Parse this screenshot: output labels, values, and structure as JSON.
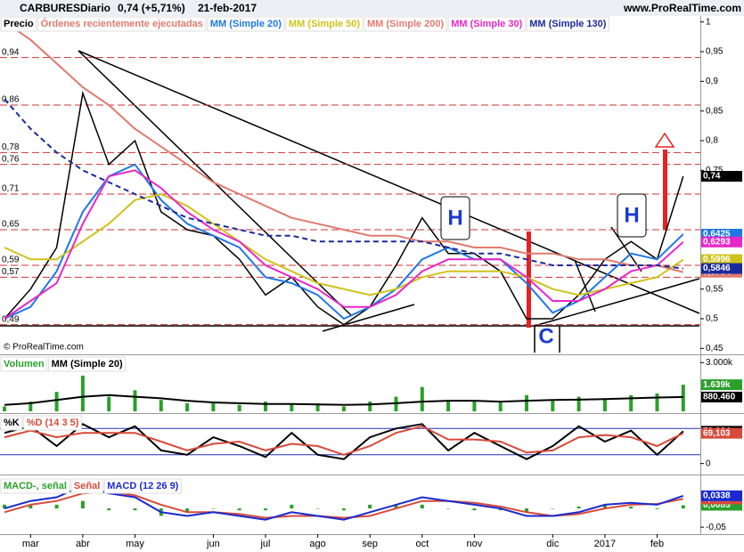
{
  "header": {
    "symbol": "CARBURES",
    "period": "Diario",
    "change": "0,74 (+5,71%)",
    "date": "21-feb-2017",
    "site": "www.ProRealTime.com"
  },
  "chart_data": [
    {
      "type": "line",
      "orders_label": "Órdenes recientemente ejecutadas",
      "source": "© ProRealTime.com",
      "annotations": [
        "H",
        "H",
        "C"
      ],
      "ylim": [
        0.44,
        1.01
      ],
      "yticks": [
        {
          "value": 0.45,
          "label": "0,45"
        },
        {
          "value": 0.5,
          "label": "0,5"
        },
        {
          "value": 0.55,
          "label": "0,55"
        },
        {
          "value": 0.75,
          "label": "0,75"
        },
        {
          "value": 0.8,
          "label": "0,8"
        },
        {
          "value": 0.85,
          "label": "0,85"
        },
        {
          "value": 0.9,
          "label": "0,9"
        },
        {
          "value": 0.95,
          "label": "0,95"
        },
        1
      ],
      "levels": [
        {
          "value": 0.94,
          "label": "0,94"
        },
        {
          "value": 0.86,
          "label": "0,86"
        },
        {
          "value": 0.78,
          "label": "0,78"
        },
        {
          "value": 0.76,
          "label": "0,76"
        },
        {
          "value": 0.71,
          "label": "0,71"
        },
        {
          "value": 0.65,
          "label": "0,65"
        },
        {
          "value": 0.59,
          "label": "0,59"
        },
        {
          "value": 0.57,
          "label": "0,57"
        },
        {
          "value": 0.49,
          "label": "0,49"
        }
      ],
      "level_color": "#d03030",
      "series": [
        {
          "name": "Precio",
          "color": "#000000",
          "values": [
            0.5,
            0.55,
            0.62,
            0.88,
            0.76,
            0.8,
            0.68,
            0.65,
            0.64,
            0.6,
            0.54,
            0.57,
            0.52,
            0.49,
            0.52,
            0.59,
            0.67,
            0.61,
            0.61,
            0.58,
            0.5,
            0.5,
            0.54,
            0.6,
            0.63,
            0.6,
            0.74
          ],
          "value_labels": [
            null,
            null,
            null,
            null,
            null,
            null,
            null,
            null,
            null,
            null,
            null,
            null,
            null,
            null,
            null,
            null,
            null,
            null,
            null,
            null,
            null,
            null,
            null,
            null,
            null,
            null,
            "0,74"
          ]
        },
        {
          "name": "MM (Simple 20)",
          "color": "#1e78e6",
          "values": [
            0.5,
            0.52,
            0.58,
            0.68,
            0.74,
            0.76,
            0.7,
            0.66,
            0.64,
            0.62,
            0.57,
            0.56,
            0.54,
            0.5,
            0.52,
            0.55,
            0.6,
            0.62,
            0.6,
            0.6,
            0.56,
            0.51,
            0.53,
            0.57,
            0.61,
            0.6,
            0.6425
          ],
          "value_labels": [
            null,
            null,
            null,
            null,
            null,
            null,
            null,
            null,
            null,
            null,
            null,
            null,
            null,
            null,
            null,
            null,
            null,
            null,
            null,
            null,
            null,
            null,
            null,
            null,
            null,
            null,
            "0,6425"
          ]
        },
        {
          "name": "MM (Simple 50)",
          "color": "#cfc21a",
          "values": [
            0.62,
            0.6,
            0.6,
            0.63,
            0.66,
            0.7,
            0.71,
            0.69,
            0.66,
            0.63,
            0.6,
            0.58,
            0.56,
            0.55,
            0.54,
            0.55,
            0.57,
            0.58,
            0.58,
            0.58,
            0.57,
            0.55,
            0.54,
            0.55,
            0.56,
            0.57,
            0.5996
          ],
          "value_labels": [
            null,
            null,
            null,
            null,
            null,
            null,
            null,
            null,
            null,
            null,
            null,
            null,
            null,
            null,
            null,
            null,
            null,
            null,
            null,
            null,
            null,
            null,
            null,
            null,
            null,
            null,
            "0,5996"
          ]
        },
        {
          "name": "MM (Simple 200)",
          "color": "#e07a6e",
          "values": [
            1.0,
            0.97,
            0.93,
            0.89,
            0.86,
            0.82,
            0.79,
            0.76,
            0.73,
            0.71,
            0.69,
            0.67,
            0.66,
            0.65,
            0.64,
            0.64,
            0.63,
            0.63,
            0.62,
            0.62,
            0.61,
            0.61,
            0.6,
            0.6,
            0.59,
            0.59,
            0.5784
          ],
          "value_labels": [
            null,
            null,
            null,
            null,
            null,
            null,
            null,
            null,
            null,
            null,
            null,
            null,
            null,
            null,
            null,
            null,
            null,
            null,
            null,
            null,
            null,
            null,
            null,
            null,
            null,
            null,
            "0,5784"
          ]
        },
        {
          "name": "MM (Simple 30)",
          "color": "#e628c8",
          "values": [
            0.5,
            0.53,
            0.56,
            0.66,
            0.74,
            0.75,
            0.72,
            0.68,
            0.65,
            0.63,
            0.59,
            0.57,
            0.55,
            0.52,
            0.52,
            0.54,
            0.58,
            0.6,
            0.6,
            0.6,
            0.57,
            0.53,
            0.53,
            0.55,
            0.58,
            0.59,
            0.6293
          ],
          "value_labels": [
            null,
            null,
            null,
            null,
            null,
            null,
            null,
            null,
            null,
            null,
            null,
            null,
            null,
            null,
            null,
            null,
            null,
            null,
            null,
            null,
            null,
            null,
            null,
            null,
            null,
            null,
            "0,6293"
          ]
        },
        {
          "name": "MM (Simple 130)",
          "color": "#1a2a9a",
          "dash": true,
          "values": [
            0.87,
            0.82,
            0.78,
            0.75,
            0.73,
            0.71,
            0.69,
            0.67,
            0.66,
            0.65,
            0.64,
            0.64,
            0.63,
            0.63,
            0.63,
            0.63,
            0.63,
            0.62,
            0.61,
            0.61,
            0.6,
            0.59,
            0.59,
            0.59,
            0.59,
            0.59,
            0.5846
          ],
          "value_labels": [
            null,
            null,
            null,
            null,
            null,
            null,
            null,
            null,
            null,
            null,
            null,
            null,
            null,
            null,
            null,
            null,
            null,
            null,
            null,
            null,
            null,
            null,
            null,
            null,
            null,
            null,
            "0,5846"
          ]
        }
      ]
    },
    {
      "type": "bar",
      "ylim": [
        0,
        3400000
      ],
      "yticks": [
        {
          "value": 3000000,
          "label": "3.000k"
        }
      ],
      "series": [
        {
          "name": "Volumen",
          "color": "#2aa02a",
          "values": [
            300000,
            600000,
            1200000,
            2200000,
            900000,
            1300000,
            700000,
            500000,
            500000,
            400000,
            600000,
            400000,
            500000,
            300000,
            600000,
            900000,
            1500000,
            700000,
            600000,
            600000,
            1000000,
            700000,
            900000,
            800000,
            1000000,
            1100000,
            1639000
          ],
          "value_labels": [
            null,
            null,
            null,
            null,
            null,
            null,
            null,
            null,
            null,
            null,
            null,
            null,
            null,
            null,
            null,
            null,
            null,
            null,
            null,
            null,
            null,
            null,
            null,
            null,
            null,
            null,
            "1.639k"
          ]
        },
        {
          "name": "MM (Simple 20)",
          "type": "line",
          "color": "#000000",
          "values": [
            400000,
            500000,
            700000,
            900000,
            1000000,
            900000,
            800000,
            650000,
            550000,
            500000,
            450000,
            450000,
            420000,
            400000,
            420000,
            500000,
            600000,
            650000,
            650000,
            600000,
            650000,
            700000,
            720000,
            750000,
            800000,
            850000,
            880460
          ],
          "value_labels": [
            null,
            null,
            null,
            null,
            null,
            null,
            null,
            null,
            null,
            null,
            null,
            null,
            null,
            null,
            null,
            null,
            null,
            null,
            null,
            null,
            null,
            null,
            null,
            null,
            null,
            null,
            "880.460"
          ]
        }
      ]
    },
    {
      "type": "line",
      "ylim": [
        -19,
        111
      ],
      "yticks": [
        0
      ],
      "levels": [
        20,
        80
      ],
      "level_color": "#2030c0",
      "series": [
        {
          "name": "%K",
          "color": "#000000",
          "values": [
            70,
            85,
            40,
            90,
            60,
            85,
            30,
            20,
            60,
            40,
            15,
            70,
            20,
            10,
            60,
            80,
            90,
            30,
            70,
            40,
            10,
            40,
            85,
            50,
            75,
            20,
            73.684
          ],
          "value_labels": [
            null,
            null,
            null,
            null,
            null,
            null,
            null,
            null,
            null,
            null,
            null,
            null,
            null,
            null,
            null,
            null,
            null,
            null,
            null,
            null,
            null,
            null,
            null,
            null,
            null,
            null,
            "73,684"
          ]
        },
        {
          "name": "%D (14 3 5)",
          "color": "#d84a3a",
          "values": [
            60,
            75,
            60,
            70,
            70,
            70,
            50,
            30,
            45,
            50,
            30,
            45,
            40,
            20,
            40,
            70,
            85,
            55,
            55,
            50,
            25,
            30,
            60,
            65,
            60,
            40,
            69.103
          ],
          "value_labels": [
            null,
            null,
            null,
            null,
            null,
            null,
            null,
            null,
            null,
            null,
            null,
            null,
            null,
            null,
            null,
            null,
            null,
            null,
            null,
            null,
            null,
            null,
            null,
            null,
            null,
            null,
            "69,103"
          ]
        }
      ]
    },
    {
      "type": "line",
      "ylim": [
        -0.064,
        0.081
      ],
      "yticks": [
        {
          "value": -0.05,
          "label": "-0,05"
        }
      ],
      "categories": [
        null,
        "mar",
        null,
        "abr",
        null,
        "may",
        null,
        null,
        "jun",
        null,
        "jul",
        null,
        "ago",
        null,
        "sep",
        null,
        "oct",
        null,
        "nov",
        null,
        null,
        "dic",
        null,
        "2017",
        null,
        "feb",
        null
      ],
      "series": [
        {
          "name": "MACD-, señal",
          "type": "bar",
          "color": "#2aa02a",
          "values": [
            0.01,
            0.01,
            0.01,
            0.02,
            -0.005,
            -0.005,
            -0.02,
            -0.01,
            0,
            -0.005,
            -0.005,
            0.01,
            0,
            -0.005,
            0.01,
            0.01,
            0.01,
            0,
            -0.005,
            -0.005,
            -0.01,
            0,
            0.005,
            0.01,
            0.005,
            -0.002,
            0.0085
          ],
          "value_labels": [
            null,
            null,
            null,
            null,
            null,
            null,
            null,
            null,
            null,
            null,
            null,
            null,
            null,
            null,
            null,
            null,
            null,
            null,
            null,
            null,
            null,
            null,
            null,
            null,
            null,
            null,
            "0,0085"
          ]
        },
        {
          "name": "Señal",
          "color": "#d84a3a",
          "values": [
            -0.01,
            0.01,
            0.02,
            0.04,
            0.045,
            0.035,
            0.01,
            -0.01,
            -0.01,
            -0.015,
            -0.025,
            -0.02,
            -0.02,
            -0.025,
            -0.02,
            0,
            0.02,
            0.02,
            0.015,
            0.005,
            -0.01,
            -0.02,
            -0.015,
            0,
            0.01,
            0.012,
            0.0253
          ],
          "value_labels": [
            null,
            null,
            null,
            null,
            null,
            null,
            null,
            null,
            null,
            null,
            null,
            null,
            null,
            null,
            null,
            null,
            null,
            null,
            null,
            null,
            null,
            null,
            null,
            null,
            null,
            null,
            "0,0253"
          ]
        },
        {
          "name": "MACD (12 26 9)",
          "color": "#1a2ad0",
          "values": [
            0,
            0.02,
            0.03,
            0.06,
            0.04,
            0.03,
            -0.01,
            -0.02,
            -0.01,
            -0.02,
            -0.03,
            -0.01,
            -0.02,
            -0.03,
            -0.01,
            0.01,
            0.03,
            0.02,
            0.01,
            0,
            -0.02,
            -0.02,
            -0.01,
            0.01,
            0.015,
            0.01,
            0.0338
          ],
          "value_labels": [
            null,
            null,
            null,
            null,
            null,
            null,
            null,
            null,
            null,
            null,
            null,
            null,
            null,
            null,
            null,
            null,
            null,
            null,
            null,
            null,
            null,
            null,
            null,
            null,
            null,
            null,
            "0,0338"
          ]
        }
      ]
    }
  ]
}
